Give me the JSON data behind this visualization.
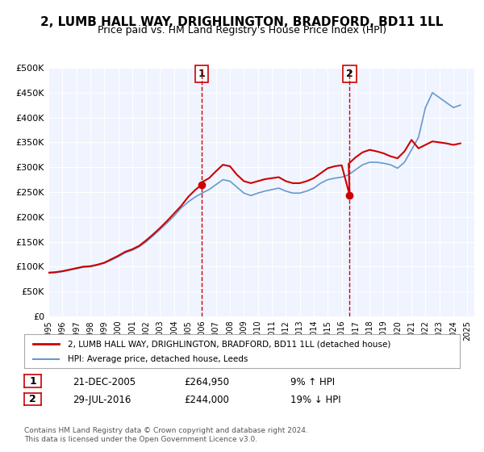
{
  "title": "2, LUMB HALL WAY, DRIGHLINGTON, BRADFORD, BD11 1LL",
  "subtitle": "Price paid vs. HM Land Registry's House Price Index (HPI)",
  "ylabel": "",
  "ylim": [
    0,
    500000
  ],
  "yticks": [
    0,
    50000,
    100000,
    150000,
    200000,
    250000,
    300000,
    350000,
    400000,
    450000,
    500000
  ],
  "ytick_labels": [
    "£0",
    "£50K",
    "£100K",
    "£150K",
    "£200K",
    "£250K",
    "£300K",
    "£350K",
    "£400K",
    "£450K",
    "£500K"
  ],
  "xlim_start": 1995.0,
  "xlim_end": 2025.5,
  "background_color": "#f0f4ff",
  "plot_bg_color": "#f0f4ff",
  "grid_color": "#ffffff",
  "sale1_date": 2005.97,
  "sale1_price": 264950,
  "sale1_label": "1",
  "sale2_date": 2016.57,
  "sale2_price": 244000,
  "sale2_label": "2",
  "legend_line1": "2, LUMB HALL WAY, DRIGHLINGTON, BRADFORD, BD11 1LL (detached house)",
  "legend_line2": "HPI: Average price, detached house, Leeds",
  "table_row1_num": "1",
  "table_row1_date": "21-DEC-2005",
  "table_row1_price": "£264,950",
  "table_row1_hpi": "9% ↑ HPI",
  "table_row2_num": "2",
  "table_row2_date": "29-JUL-2016",
  "table_row2_price": "£244,000",
  "table_row2_hpi": "19% ↓ HPI",
  "footer": "Contains HM Land Registry data © Crown copyright and database right 2024.\nThis data is licensed under the Open Government Licence v3.0.",
  "line_color_red": "#cc0000",
  "line_color_blue": "#6699cc",
  "marker_color": "#cc0000",
  "vline_color": "#cc0000",
  "title_fontsize": 11,
  "subtitle_fontsize": 9,
  "hpi_x": [
    1995.0,
    1995.5,
    1996.0,
    1996.5,
    1997.0,
    1997.5,
    1998.0,
    1998.5,
    1999.0,
    1999.5,
    2000.0,
    2000.5,
    2001.0,
    2001.5,
    2002.0,
    2002.5,
    2003.0,
    2003.5,
    2004.0,
    2004.5,
    2005.0,
    2005.5,
    2006.0,
    2006.5,
    2007.0,
    2007.5,
    2008.0,
    2008.5,
    2009.0,
    2009.5,
    2010.0,
    2010.5,
    2011.0,
    2011.5,
    2012.0,
    2012.5,
    2013.0,
    2013.5,
    2014.0,
    2014.5,
    2015.0,
    2015.5,
    2016.0,
    2016.5,
    2017.0,
    2017.5,
    2018.0,
    2018.5,
    2019.0,
    2019.5,
    2020.0,
    2020.5,
    2021.0,
    2021.5,
    2022.0,
    2022.5,
    2023.0,
    2023.5,
    2024.0,
    2024.5
  ],
  "hpi_y": [
    87000,
    88000,
    90000,
    93000,
    96000,
    99000,
    100000,
    103000,
    107000,
    113000,
    120000,
    128000,
    133000,
    140000,
    150000,
    162000,
    175000,
    188000,
    202000,
    218000,
    230000,
    240000,
    248000,
    255000,
    265000,
    275000,
    272000,
    260000,
    248000,
    243000,
    248000,
    252000,
    255000,
    258000,
    252000,
    248000,
    248000,
    252000,
    258000,
    268000,
    275000,
    278000,
    280000,
    285000,
    295000,
    305000,
    310000,
    310000,
    308000,
    305000,
    298000,
    310000,
    335000,
    360000,
    420000,
    450000,
    440000,
    430000,
    420000,
    425000
  ],
  "red_x": [
    1995.0,
    1995.5,
    1996.0,
    1996.5,
    1997.0,
    1997.5,
    1998.0,
    1998.5,
    1999.0,
    1999.5,
    2000.0,
    2000.5,
    2001.0,
    2001.5,
    2002.0,
    2002.5,
    2003.0,
    2003.5,
    2004.0,
    2004.5,
    2005.0,
    2005.5,
    2005.97,
    2006.0,
    2006.5,
    2007.0,
    2007.5,
    2008.0,
    2008.5,
    2009.0,
    2009.5,
    2010.0,
    2010.5,
    2011.0,
    2011.5,
    2012.0,
    2012.5,
    2013.0,
    2013.5,
    2014.0,
    2014.5,
    2015.0,
    2015.5,
    2016.0,
    2016.57,
    2016.5,
    2017.0,
    2017.5,
    2018.0,
    2018.5,
    2019.0,
    2019.5,
    2020.0,
    2020.5,
    2021.0,
    2021.5,
    2022.0,
    2022.5,
    2023.0,
    2023.5,
    2024.0,
    2024.5
  ],
  "red_y": [
    88000,
    89000,
    91000,
    94000,
    97000,
    100000,
    101000,
    104000,
    108000,
    115000,
    122000,
    130000,
    135000,
    142000,
    153000,
    165000,
    178000,
    192000,
    207000,
    222000,
    240000,
    254000,
    264950,
    270000,
    278000,
    292000,
    305000,
    302000,
    285000,
    272000,
    268000,
    272000,
    276000,
    278000,
    280000,
    272000,
    268000,
    268000,
    272000,
    278000,
    288000,
    298000,
    302000,
    304000,
    244000,
    307000,
    320000,
    330000,
    335000,
    332000,
    328000,
    322000,
    318000,
    332000,
    355000,
    338000,
    345000,
    352000,
    350000,
    348000,
    345000,
    348000
  ]
}
